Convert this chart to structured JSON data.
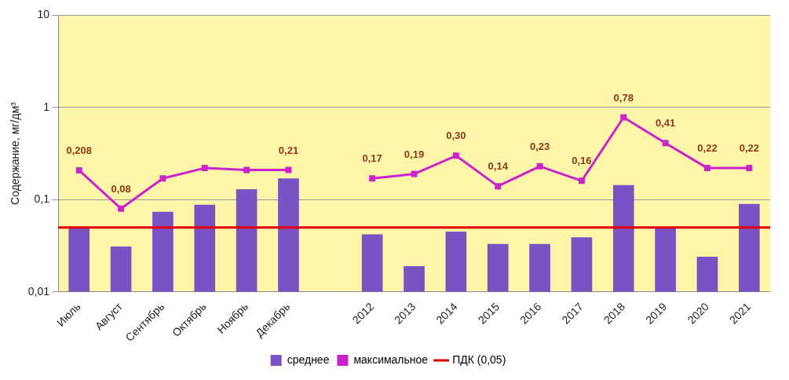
{
  "chart_data": {
    "type": "bar",
    "ylabel": "Содержание, мг/дм³",
    "categories": [
      "Июль",
      "Август",
      "Сентябрь",
      "Октябрь",
      "Ноябрь",
      "Декабрь",
      null,
      "2012",
      "2013",
      "2014",
      "2015",
      "2016",
      "2017",
      "2018",
      "2019",
      "2020",
      "2021"
    ],
    "series": [
      {
        "name": "среднее",
        "color": "#7b52c4",
        "values": [
          0.051,
          0.031,
          0.074,
          0.088,
          0.13,
          0.17,
          null,
          0.042,
          0.019,
          0.045,
          0.033,
          0.033,
          0.039,
          0.144,
          0.05,
          0.024,
          0.09
        ]
      },
      {
        "name": "максимальное",
        "type": "line",
        "color": "#cc22cc",
        "values": [
          0.208,
          0.08,
          0.17,
          0.22,
          0.21,
          0.21,
          null,
          0.17,
          0.19,
          0.3,
          0.14,
          0.23,
          0.16,
          0.78,
          0.41,
          0.22,
          0.22
        ],
        "value_labels": [
          "0,208",
          "0,08",
          null,
          null,
          null,
          "0,21",
          null,
          "0,17",
          "0,19",
          "0,30",
          "0,14",
          "0,23",
          "0,16",
          "0,78",
          "0,41",
          "0,22",
          "0,22"
        ]
      }
    ],
    "ref_lines": [
      {
        "axis": "y",
        "value": 0.05,
        "label": "ПДК (0,05)",
        "color": "#e00000"
      }
    ],
    "log": true,
    "ylim": [
      0.01,
      10
    ],
    "yticks": [
      {
        "value": 0.01,
        "label": "0,01"
      },
      {
        "value": 0.1,
        "label": "0,1"
      },
      {
        "value": 1,
        "label": "1"
      },
      {
        "value": 10,
        "label": "10"
      }
    ],
    "grid": "y",
    "legend": "bottom",
    "marker": "square"
  }
}
